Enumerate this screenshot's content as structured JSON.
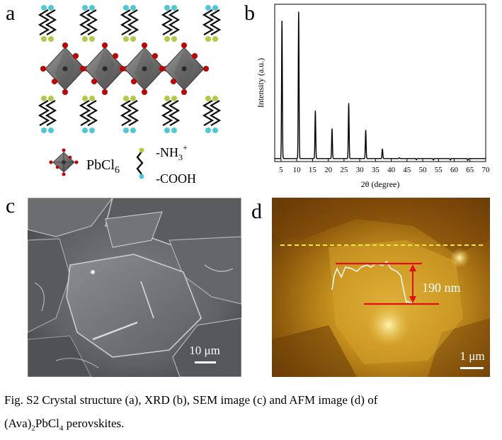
{
  "panels": {
    "a": {
      "letter": "a",
      "legend": {
        "pbcl6_label_main": "PbCl",
        "pbcl6_label_sub": "6",
        "nh3_label_main": "-NH",
        "nh3_label_sub": "3",
        "nh3_label_sup": "+",
        "cooh_label": "-COOH"
      },
      "colors": {
        "octahedron": "#6e6e6e",
        "chlorine": "#c00000",
        "amine": "#b6c84a",
        "carboxyl": "#4fc8d4"
      }
    },
    "b": {
      "letter": "b"
    },
    "c": {
      "letter": "c",
      "scalebar_label": "10 μm"
    },
    "d": {
      "letter": "d",
      "height_label": "190 nm",
      "scalebar_label": "1 μm",
      "colors": {
        "dashed_line": "#f5e642",
        "marker": "#e01010",
        "profile": "#ffffff"
      }
    }
  },
  "chart_data": {
    "type": "line",
    "title": "",
    "xlabel": "2θ (degree)",
    "ylabel": "Intensity (a.u.)",
    "xlim": [
      3,
      70
    ],
    "xticks": [
      5,
      10,
      15,
      20,
      25,
      30,
      35,
      40,
      45,
      50,
      55,
      60,
      65,
      70
    ],
    "y_ticks_shown": false,
    "ylim": [
      0,
      1.05
    ],
    "baseline": 0.02,
    "peaks": [
      {
        "x": 5.3,
        "y": 0.94
      },
      {
        "x": 10.6,
        "y": 1.0
      },
      {
        "x": 15.9,
        "y": 0.34
      },
      {
        "x": 21.2,
        "y": 0.22
      },
      {
        "x": 26.5,
        "y": 0.39
      },
      {
        "x": 31.9,
        "y": 0.21
      },
      {
        "x": 37.2,
        "y": 0.085
      },
      {
        "x": 42.6,
        "y": 0.025
      },
      {
        "x": 48.0,
        "y": 0.012
      },
      {
        "x": 53.4,
        "y": 0.01
      },
      {
        "x": 58.8,
        "y": 0.01
      },
      {
        "x": 64.3,
        "y": 0.008
      }
    ]
  },
  "caption": {
    "line1": "Fig. S2 Crystal structure (a), XRD (b), SEM image (c) and AFM image (d) of",
    "line2_pre": "(Ava)",
    "line2_sub1": "2",
    "line2_mid": "PbCl",
    "line2_sub2": "4",
    "line2_post": " perovskites."
  }
}
